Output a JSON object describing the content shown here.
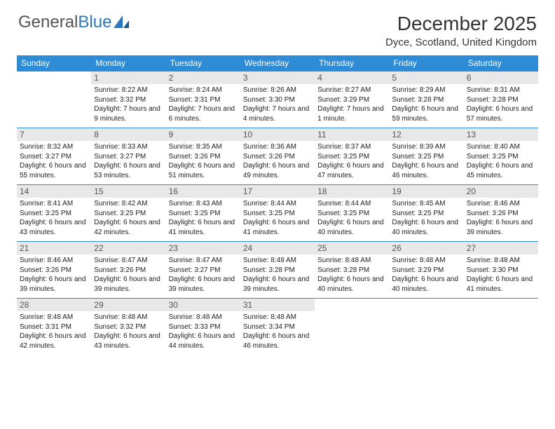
{
  "logo": {
    "text1": "General",
    "text2": "Blue"
  },
  "title": "December 2025",
  "location": "Dyce, Scotland, United Kingdom",
  "colors": {
    "header_bg": "#2e8bd6",
    "daynum_bg": "#e8e8e8",
    "border": "#2e8bd6"
  },
  "day_names": [
    "Sunday",
    "Monday",
    "Tuesday",
    "Wednesday",
    "Thursday",
    "Friday",
    "Saturday"
  ],
  "weeks": [
    [
      {
        "n": "",
        "sr": "",
        "ss": "",
        "dl": ""
      },
      {
        "n": "1",
        "sr": "Sunrise: 8:22 AM",
        "ss": "Sunset: 3:32 PM",
        "dl": "Daylight: 7 hours and 9 minutes."
      },
      {
        "n": "2",
        "sr": "Sunrise: 8:24 AM",
        "ss": "Sunset: 3:31 PM",
        "dl": "Daylight: 7 hours and 6 minutes."
      },
      {
        "n": "3",
        "sr": "Sunrise: 8:26 AM",
        "ss": "Sunset: 3:30 PM",
        "dl": "Daylight: 7 hours and 4 minutes."
      },
      {
        "n": "4",
        "sr": "Sunrise: 8:27 AM",
        "ss": "Sunset: 3:29 PM",
        "dl": "Daylight: 7 hours and 1 minute."
      },
      {
        "n": "5",
        "sr": "Sunrise: 8:29 AM",
        "ss": "Sunset: 3:28 PM",
        "dl": "Daylight: 6 hours and 59 minutes."
      },
      {
        "n": "6",
        "sr": "Sunrise: 8:31 AM",
        "ss": "Sunset: 3:28 PM",
        "dl": "Daylight: 6 hours and 57 minutes."
      }
    ],
    [
      {
        "n": "7",
        "sr": "Sunrise: 8:32 AM",
        "ss": "Sunset: 3:27 PM",
        "dl": "Daylight: 6 hours and 55 minutes."
      },
      {
        "n": "8",
        "sr": "Sunrise: 8:33 AM",
        "ss": "Sunset: 3:27 PM",
        "dl": "Daylight: 6 hours and 53 minutes."
      },
      {
        "n": "9",
        "sr": "Sunrise: 8:35 AM",
        "ss": "Sunset: 3:26 PM",
        "dl": "Daylight: 6 hours and 51 minutes."
      },
      {
        "n": "10",
        "sr": "Sunrise: 8:36 AM",
        "ss": "Sunset: 3:26 PM",
        "dl": "Daylight: 6 hours and 49 minutes."
      },
      {
        "n": "11",
        "sr": "Sunrise: 8:37 AM",
        "ss": "Sunset: 3:25 PM",
        "dl": "Daylight: 6 hours and 47 minutes."
      },
      {
        "n": "12",
        "sr": "Sunrise: 8:39 AM",
        "ss": "Sunset: 3:25 PM",
        "dl": "Daylight: 6 hours and 46 minutes."
      },
      {
        "n": "13",
        "sr": "Sunrise: 8:40 AM",
        "ss": "Sunset: 3:25 PM",
        "dl": "Daylight: 6 hours and 45 minutes."
      }
    ],
    [
      {
        "n": "14",
        "sr": "Sunrise: 8:41 AM",
        "ss": "Sunset: 3:25 PM",
        "dl": "Daylight: 6 hours and 43 minutes."
      },
      {
        "n": "15",
        "sr": "Sunrise: 8:42 AM",
        "ss": "Sunset: 3:25 PM",
        "dl": "Daylight: 6 hours and 42 minutes."
      },
      {
        "n": "16",
        "sr": "Sunrise: 8:43 AM",
        "ss": "Sunset: 3:25 PM",
        "dl": "Daylight: 6 hours and 41 minutes."
      },
      {
        "n": "17",
        "sr": "Sunrise: 8:44 AM",
        "ss": "Sunset: 3:25 PM",
        "dl": "Daylight: 6 hours and 41 minutes."
      },
      {
        "n": "18",
        "sr": "Sunrise: 8:44 AM",
        "ss": "Sunset: 3:25 PM",
        "dl": "Daylight: 6 hours and 40 minutes."
      },
      {
        "n": "19",
        "sr": "Sunrise: 8:45 AM",
        "ss": "Sunset: 3:25 PM",
        "dl": "Daylight: 6 hours and 40 minutes."
      },
      {
        "n": "20",
        "sr": "Sunrise: 8:46 AM",
        "ss": "Sunset: 3:26 PM",
        "dl": "Daylight: 6 hours and 39 minutes."
      }
    ],
    [
      {
        "n": "21",
        "sr": "Sunrise: 8:46 AM",
        "ss": "Sunset: 3:26 PM",
        "dl": "Daylight: 6 hours and 39 minutes."
      },
      {
        "n": "22",
        "sr": "Sunrise: 8:47 AM",
        "ss": "Sunset: 3:26 PM",
        "dl": "Daylight: 6 hours and 39 minutes."
      },
      {
        "n": "23",
        "sr": "Sunrise: 8:47 AM",
        "ss": "Sunset: 3:27 PM",
        "dl": "Daylight: 6 hours and 39 minutes."
      },
      {
        "n": "24",
        "sr": "Sunrise: 8:48 AM",
        "ss": "Sunset: 3:28 PM",
        "dl": "Daylight: 6 hours and 39 minutes."
      },
      {
        "n": "25",
        "sr": "Sunrise: 8:48 AM",
        "ss": "Sunset: 3:28 PM",
        "dl": "Daylight: 6 hours and 40 minutes."
      },
      {
        "n": "26",
        "sr": "Sunrise: 8:48 AM",
        "ss": "Sunset: 3:29 PM",
        "dl": "Daylight: 6 hours and 40 minutes."
      },
      {
        "n": "27",
        "sr": "Sunrise: 8:48 AM",
        "ss": "Sunset: 3:30 PM",
        "dl": "Daylight: 6 hours and 41 minutes."
      }
    ],
    [
      {
        "n": "28",
        "sr": "Sunrise: 8:48 AM",
        "ss": "Sunset: 3:31 PM",
        "dl": "Daylight: 6 hours and 42 minutes."
      },
      {
        "n": "29",
        "sr": "Sunrise: 8:48 AM",
        "ss": "Sunset: 3:32 PM",
        "dl": "Daylight: 6 hours and 43 minutes."
      },
      {
        "n": "30",
        "sr": "Sunrise: 8:48 AM",
        "ss": "Sunset: 3:33 PM",
        "dl": "Daylight: 6 hours and 44 minutes."
      },
      {
        "n": "31",
        "sr": "Sunrise: 8:48 AM",
        "ss": "Sunset: 3:34 PM",
        "dl": "Daylight: 6 hours and 46 minutes."
      },
      {
        "n": "",
        "sr": "",
        "ss": "",
        "dl": ""
      },
      {
        "n": "",
        "sr": "",
        "ss": "",
        "dl": ""
      },
      {
        "n": "",
        "sr": "",
        "ss": "",
        "dl": ""
      }
    ]
  ]
}
